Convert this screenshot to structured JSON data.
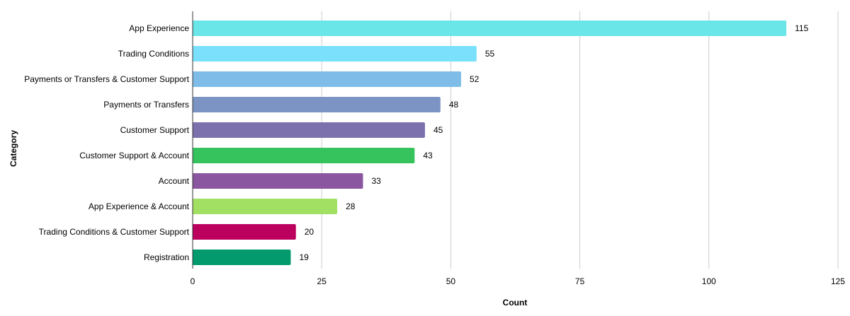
{
  "chart_data": {
    "type": "bar",
    "orientation": "horizontal",
    "title": "",
    "xlabel": "Count",
    "ylabel": "Category",
    "xlim": [
      0,
      125
    ],
    "xticks": [
      0,
      25,
      50,
      75,
      100,
      125
    ],
    "grid": true,
    "data_labels": true,
    "categories": [
      "App Experience",
      "Trading Conditions",
      "Payments or Transfers & Customer Support",
      "Payments or Transfers",
      "Customer Support",
      "Customer Support & Account",
      "Account",
      "App Experience & Account",
      "Trading Conditions & Customer Support",
      "Registration"
    ],
    "values": [
      115,
      55,
      52,
      48,
      45,
      43,
      33,
      28,
      20,
      19
    ],
    "colors": [
      "#6ae5e8",
      "#7ae0fc",
      "#7fbde8",
      "#7b94c3",
      "#7c71ad",
      "#36c35d",
      "#8a56a0",
      "#a1e063",
      "#bb005e",
      "#039a6e"
    ]
  }
}
